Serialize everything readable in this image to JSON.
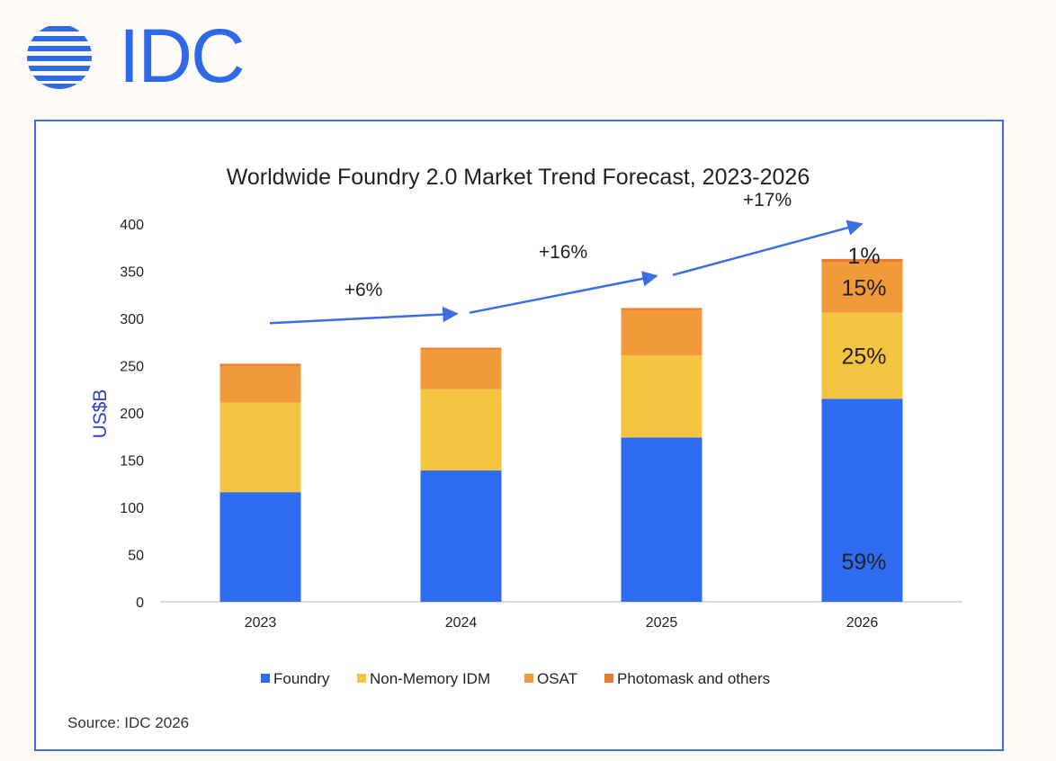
{
  "brand": {
    "logo_text": "IDC",
    "color": "#2f6ae6"
  },
  "source": "Source: IDC 2026",
  "chart_data": {
    "type": "bar",
    "stacked": true,
    "title": "Worldwide Foundry 2.0 Market Trend Forecast, 2023-2026",
    "xlabel": "",
    "ylabel": "US$B",
    "ylim": [
      0,
      400
    ],
    "yticks": [
      0,
      50,
      100,
      150,
      200,
      250,
      300,
      350,
      400
    ],
    "categories": [
      "2023",
      "2024",
      "2025",
      "2026"
    ],
    "series": [
      {
        "name": "Foundry",
        "color": "#2f6bf0",
        "values": [
          116,
          139,
          174,
          215
        ]
      },
      {
        "name": "Non-Memory IDM",
        "color": "#f5c542",
        "values": [
          95,
          86,
          87,
          91
        ]
      },
      {
        "name": "OSAT",
        "color": "#f09a3a",
        "values": [
          39,
          42,
          48,
          54
        ]
      },
      {
        "name": "Photomask and others",
        "color": "#ea7a2c",
        "values": [
          2,
          2,
          2,
          3
        ]
      }
    ],
    "data_labels": [
      {
        "category": "2026",
        "series": "Foundry",
        "text": "59%"
      },
      {
        "category": "2026",
        "series": "Non-Memory IDM",
        "text": "25%"
      },
      {
        "category": "2026",
        "series": "OSAT",
        "text": "15%"
      },
      {
        "category": "2026",
        "series": "Photomask and others",
        "text": "1%"
      }
    ],
    "growth_annotations": [
      {
        "text": "+6%",
        "from": 295,
        "to": 305
      },
      {
        "text": "+16%",
        "from": 306,
        "to": 345
      },
      {
        "text": "+17%",
        "from": 346,
        "to": 400
      }
    ],
    "legend_position": "bottom"
  }
}
